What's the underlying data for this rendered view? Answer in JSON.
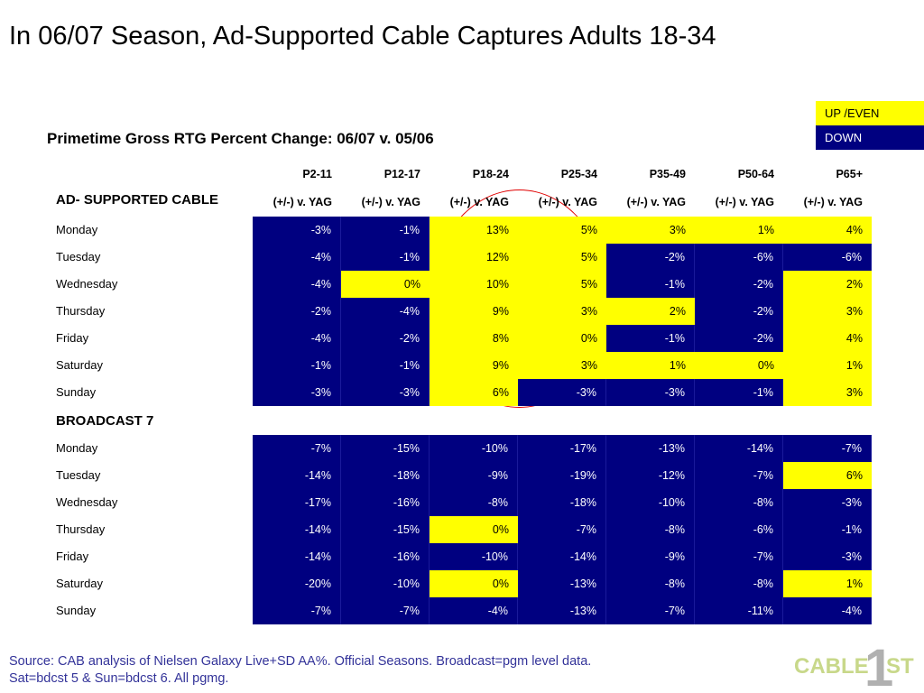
{
  "title": "In 06/07 Season, Ad-Supported Cable Captures Adults 18-34",
  "legend": {
    "up": "UP /EVEN",
    "down": "DOWN"
  },
  "subtitle": "Primetime Gross RTG Percent Change: 06/07 v. 05/06",
  "columns": [
    "P2-11",
    "P12-17",
    "P18-24",
    "P25-34",
    "P35-49",
    "P50-64",
    "P65+"
  ],
  "col_sub": "(+/-) v. YAG",
  "colors": {
    "up": "#ffff00",
    "down": "#000080"
  },
  "sections": [
    {
      "name": "AD- SUPPORTED CABLE",
      "rows": [
        {
          "day": "Monday",
          "values": [
            "-3%",
            "-1%",
            "13%",
            "5%",
            "3%",
            "1%",
            "4%"
          ],
          "status": [
            "down",
            "down",
            "up",
            "up",
            "up",
            "up",
            "up"
          ]
        },
        {
          "day": "Tuesday",
          "values": [
            "-4%",
            "-1%",
            "12%",
            "5%",
            "-2%",
            "-6%",
            "-6%"
          ],
          "status": [
            "down",
            "down",
            "up",
            "up",
            "down",
            "down",
            "down"
          ]
        },
        {
          "day": "Wednesday",
          "values": [
            "-4%",
            "0%",
            "10%",
            "5%",
            "-1%",
            "-2%",
            "2%"
          ],
          "status": [
            "down",
            "up",
            "up",
            "up",
            "down",
            "down",
            "up"
          ]
        },
        {
          "day": "Thursday",
          "values": [
            "-2%",
            "-4%",
            "9%",
            "3%",
            "2%",
            "-2%",
            "3%"
          ],
          "status": [
            "down",
            "down",
            "up",
            "up",
            "up",
            "down",
            "up"
          ]
        },
        {
          "day": "Friday",
          "values": [
            "-4%",
            "-2%",
            "8%",
            "0%",
            "-1%",
            "-2%",
            "4%"
          ],
          "status": [
            "down",
            "down",
            "up",
            "up",
            "down",
            "down",
            "up"
          ]
        },
        {
          "day": "Saturday",
          "values": [
            "-1%",
            "-1%",
            "9%",
            "3%",
            "1%",
            "0%",
            "1%"
          ],
          "status": [
            "down",
            "down",
            "up",
            "up",
            "up",
            "up",
            "up"
          ]
        },
        {
          "day": "Sunday",
          "values": [
            "-3%",
            "-3%",
            "6%",
            "-3%",
            "-3%",
            "-1%",
            "3%"
          ],
          "status": [
            "down",
            "down",
            "up",
            "down",
            "down",
            "down",
            "up"
          ]
        }
      ]
    },
    {
      "name": "BROADCAST 7",
      "rows": [
        {
          "day": "Monday",
          "values": [
            "-7%",
            "-15%",
            "-10%",
            "-17%",
            "-13%",
            "-14%",
            "-7%"
          ],
          "status": [
            "down",
            "down",
            "down",
            "down",
            "down",
            "down",
            "down"
          ]
        },
        {
          "day": "Tuesday",
          "values": [
            "-14%",
            "-18%",
            "-9%",
            "-19%",
            "-12%",
            "-7%",
            "6%"
          ],
          "status": [
            "down",
            "down",
            "down",
            "down",
            "down",
            "down",
            "up"
          ]
        },
        {
          "day": "Wednesday",
          "values": [
            "-17%",
            "-16%",
            "-8%",
            "-18%",
            "-10%",
            "-8%",
            "-3%"
          ],
          "status": [
            "down",
            "down",
            "down",
            "down",
            "down",
            "down",
            "down"
          ]
        },
        {
          "day": "Thursday",
          "values": [
            "-14%",
            "-15%",
            "0%",
            "-7%",
            "-8%",
            "-6%",
            "-1%"
          ],
          "status": [
            "down",
            "down",
            "up",
            "down",
            "down",
            "down",
            "down"
          ]
        },
        {
          "day": "Friday",
          "values": [
            "-14%",
            "-16%",
            "-10%",
            "-14%",
            "-9%",
            "-7%",
            "-3%"
          ],
          "status": [
            "down",
            "down",
            "down",
            "down",
            "down",
            "down",
            "down"
          ]
        },
        {
          "day": "Saturday",
          "values": [
            "-20%",
            "-10%",
            "0%",
            "-13%",
            "-8%",
            "-8%",
            "1%"
          ],
          "status": [
            "down",
            "down",
            "up",
            "down",
            "down",
            "down",
            "up"
          ]
        },
        {
          "day": "Sunday",
          "values": [
            "-7%",
            "-7%",
            "-4%",
            "-13%",
            "-7%",
            "-11%",
            "-4%"
          ],
          "status": [
            "down",
            "down",
            "down",
            "down",
            "down",
            "down",
            "down"
          ]
        }
      ]
    }
  ],
  "source": {
    "line1": "Source: CAB analysis of Nielsen Galaxy Live+SD AA%. Official Seasons. Broadcast=pgm level data.",
    "line2": "Sat=bdcst 5 & Sun=bdcst 6.  All pgmg."
  },
  "logo": {
    "text_a": "CABLE",
    "numeral": "1",
    "text_b": "ST"
  }
}
